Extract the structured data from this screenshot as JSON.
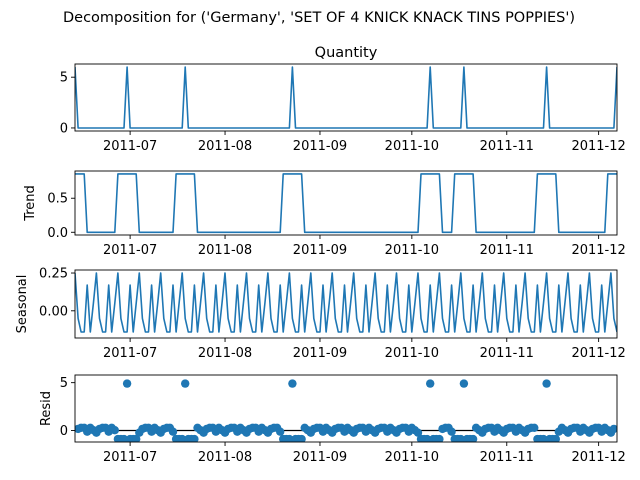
{
  "chart_data": {
    "type": "line",
    "title": "Decomposition for ('Germany', 'SET OF 4 KNICK KNACK TINS POPPIES')",
    "x_range": [
      "2011-06-13",
      "2011-12-07"
    ],
    "x_tick_dates": [
      "2011-07-01",
      "2011-08-01",
      "2011-09-01",
      "2011-10-01",
      "2011-11-01",
      "2011-12-01"
    ],
    "x_tick_labels": [
      "2011-07",
      "2011-08",
      "2011-09",
      "2011-10",
      "2011-11",
      "2011-12"
    ],
    "start_date": "2011-06-13",
    "end_date": "2011-12-07",
    "panels": [
      {
        "kind": "line",
        "title": "Quantity",
        "ylabel": "",
        "ylim": [
          -0.3,
          6.3
        ],
        "yticks": [
          0,
          5
        ],
        "ytick_labels": [
          "0",
          "5"
        ],
        "baseline": 0,
        "spikes": [
          {
            "date": "2011-06-13",
            "value": 6
          },
          {
            "date": "2011-06-30",
            "value": 6
          },
          {
            "date": "2011-07-19",
            "value": 6
          },
          {
            "date": "2011-08-23",
            "value": 6
          },
          {
            "date": "2011-10-07",
            "value": 6
          },
          {
            "date": "2011-10-18",
            "value": 6
          },
          {
            "date": "2011-11-14",
            "value": 6
          },
          {
            "date": "2011-12-07",
            "value": 6
          }
        ]
      },
      {
        "kind": "line",
        "title": "",
        "ylabel": "Trend",
        "ylim": [
          -0.04,
          0.9
        ],
        "yticks": [
          0,
          0.5
        ],
        "ytick_labels": [
          "0.0",
          "0.5"
        ],
        "low": 0,
        "high": 0.857,
        "plateaus": [
          {
            "start": "2011-06-13",
            "end": "2011-06-16"
          },
          {
            "start": "2011-06-27",
            "end": "2011-07-03"
          },
          {
            "start": "2011-07-16",
            "end": "2011-07-22"
          },
          {
            "start": "2011-08-20",
            "end": "2011-08-26"
          },
          {
            "start": "2011-10-04",
            "end": "2011-10-10"
          },
          {
            "start": "2011-10-15",
            "end": "2011-10-21"
          },
          {
            "start": "2011-11-11",
            "end": "2011-11-17"
          },
          {
            "start": "2011-12-04",
            "end": "2011-12-07"
          }
        ]
      },
      {
        "kind": "line",
        "title": "",
        "ylabel": "Seasonal",
        "ylim": [
          -0.18,
          0.27
        ],
        "yticks": [
          0,
          0.25
        ],
        "ytick_labels": [
          "0.00",
          "0.25"
        ],
        "period_days": 7,
        "weekly_pattern": [
          0.25,
          -0.05,
          -0.14,
          -0.14,
          0.17,
          -0.14,
          0.05
        ]
      },
      {
        "kind": "scatter",
        "title": "",
        "ylabel": "Resid",
        "ylim": [
          -1.2,
          5.8
        ],
        "yticks": [
          0,
          5
        ],
        "ytick_labels": [
          "0",
          "5"
        ],
        "zero_line": true,
        "spike_resid": 5,
        "spike_dates": [
          "2011-06-30",
          "2011-07-19",
          "2011-08-23",
          "2011-10-07",
          "2011-10-18",
          "2011-11-14"
        ]
      }
    ]
  }
}
